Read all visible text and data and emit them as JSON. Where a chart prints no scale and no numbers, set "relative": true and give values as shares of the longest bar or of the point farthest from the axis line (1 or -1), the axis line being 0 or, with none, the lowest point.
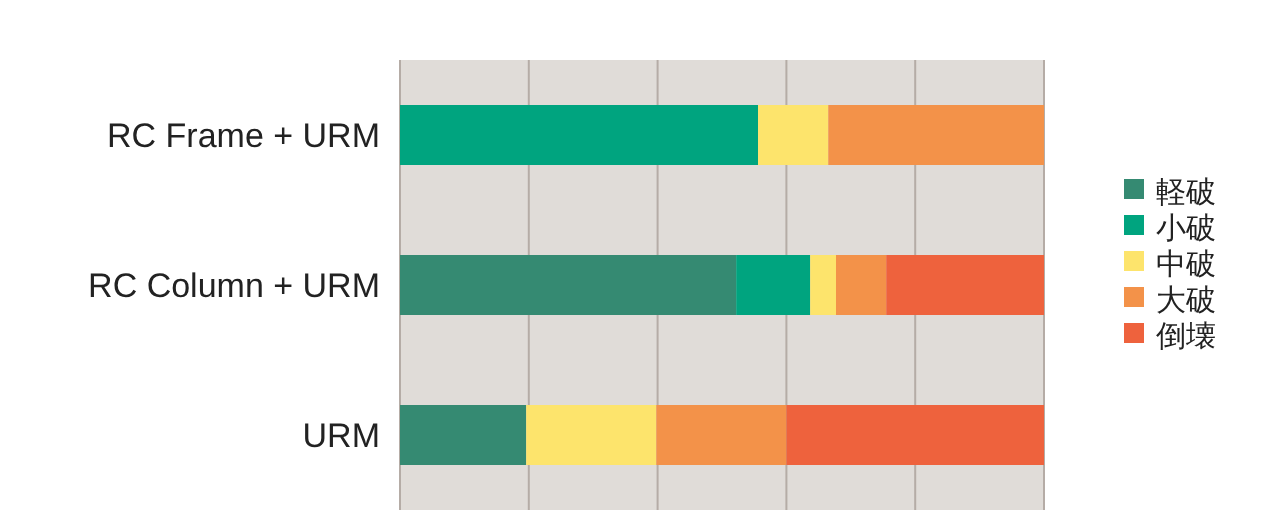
{
  "chart_data": {
    "type": "bar",
    "orientation": "horizontal",
    "stacked": true,
    "relative": true,
    "grid": "x",
    "legend": "right",
    "categories": [
      "RC Frame + URM",
      "RC Column + URM",
      "URM"
    ],
    "series": [
      {
        "name": "軽破",
        "color": "#358a72",
        "values": [
          0,
          0.522,
          0.196
        ]
      },
      {
        "name": "小破",
        "color": "#00a47f",
        "values": [
          0.556,
          0.115,
          0
        ]
      },
      {
        "name": "中破",
        "color": "#fde46c",
        "values": [
          0.109,
          0.04,
          0.202
        ]
      },
      {
        "name": "大破",
        "color": "#f39249",
        "values": [
          0.335,
          0.078,
          0.202
        ]
      },
      {
        "name": "倒壊",
        "color": "#ee623d",
        "values": [
          0,
          0.245,
          0.4
        ]
      }
    ]
  }
}
